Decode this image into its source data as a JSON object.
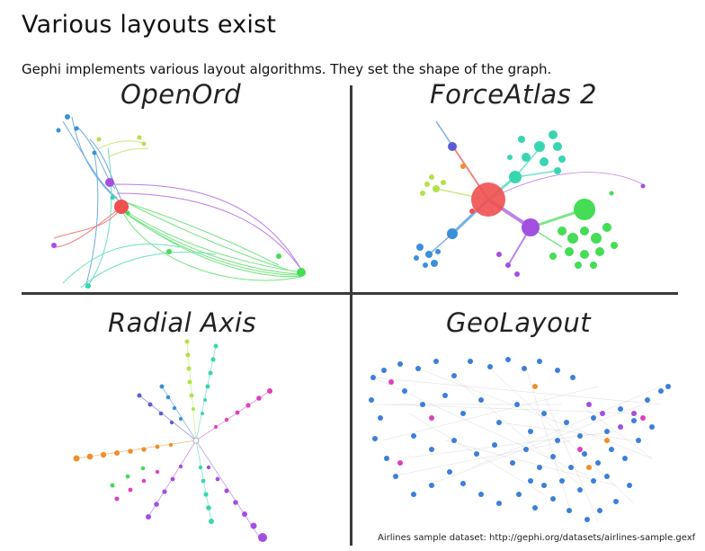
{
  "title": "Various layouts exist",
  "subtitle": "Gephi implements various layout algorithms. They set the shape of the graph.",
  "layouts": {
    "openord": "OpenOrd",
    "forceatlas": "ForceAtlas 2",
    "radial": "Radial Axis",
    "geo": "GeoLayout"
  },
  "caption": "Airlines sample dataset: http://gephi.org/datasets/airlines-sample.gexf",
  "colors": {
    "hub_red": "#f0504f",
    "blue": "#3b8fd9",
    "green": "#44dd55",
    "purple": "#a34fe0",
    "teal": "#38d6b0",
    "lime": "#b2e24a",
    "magenta": "#e03fc0",
    "orange": "#ef8e2c"
  }
}
